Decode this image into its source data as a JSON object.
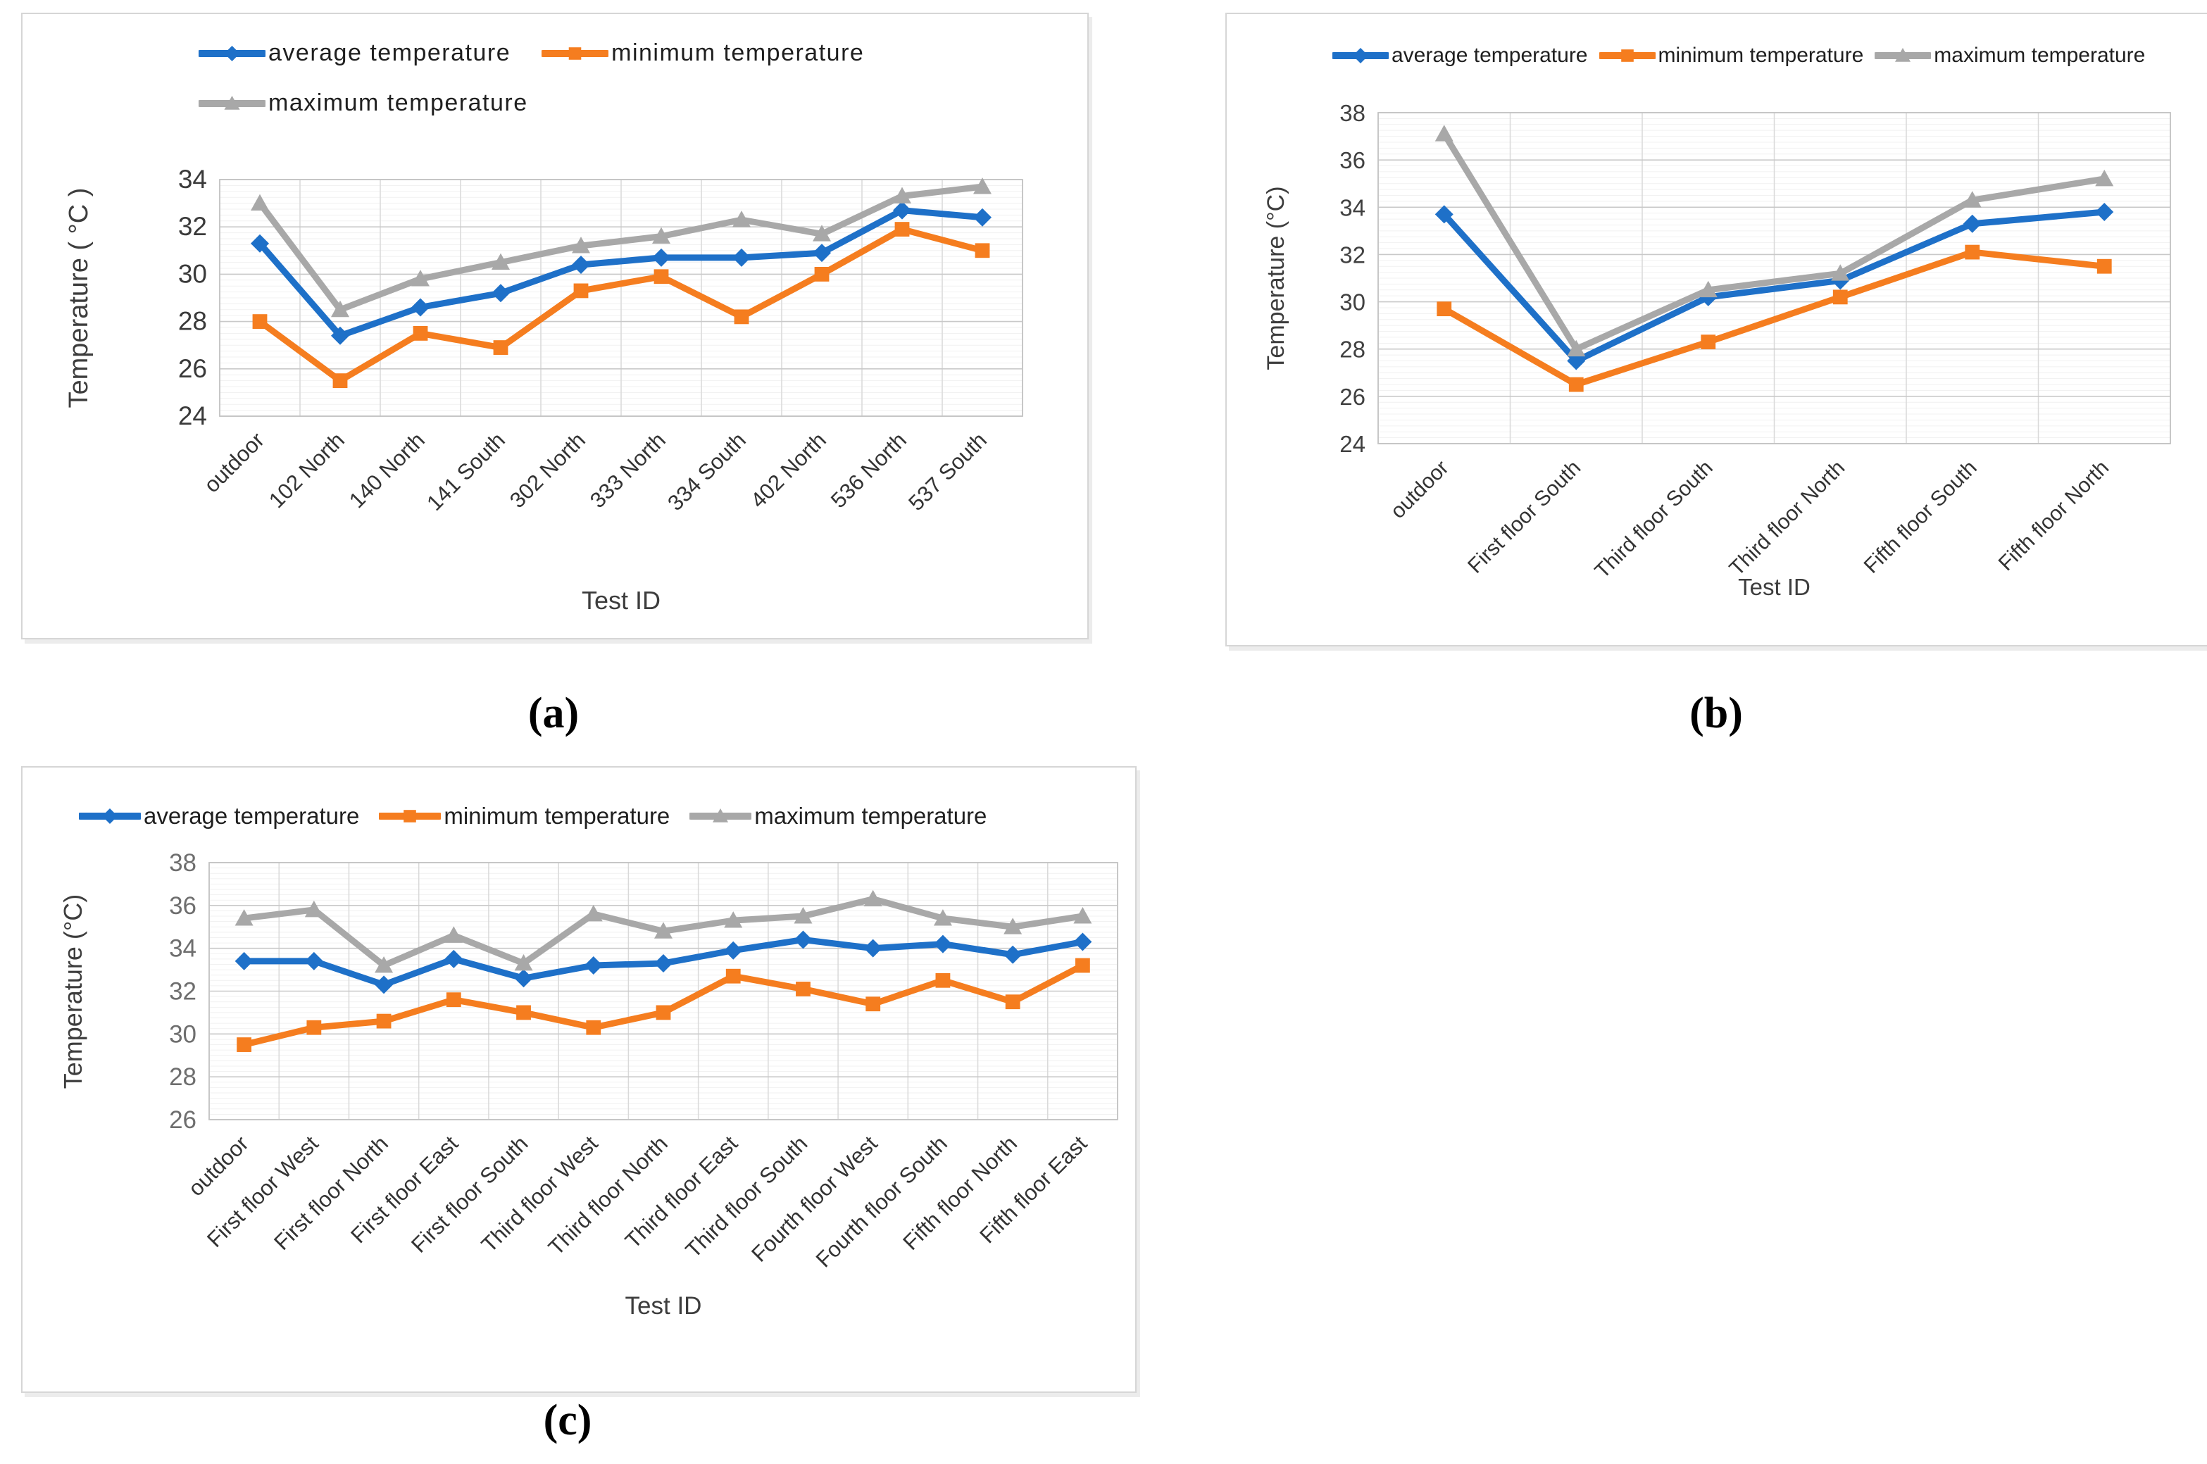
{
  "figure": {
    "background": "#ffffff",
    "panel_labels": {
      "a": "(a)",
      "b": "(b)",
      "c": "(c)"
    }
  },
  "palette": {
    "average": "#1E70C8",
    "minimum": "#F57D1F",
    "maximum": "#A8A8A8",
    "grid_major": "#c9c9c9",
    "grid_minor": "#f1f1f1",
    "grid_vertical": "#d9d9d9",
    "plot_border": "#c3c3c3"
  },
  "chart_data": [
    {
      "id": "a",
      "type": "line",
      "title": "",
      "xlabel": "Test ID",
      "ylabel": "Temperature ( °C )",
      "ylim": [
        24,
        34
      ],
      "ytick_step": 2,
      "grid": true,
      "legend_position": "top",
      "legend_rows": [
        [
          "average temperature",
          "minimum temperature"
        ],
        [
          "maximum temperature"
        ]
      ],
      "categories": [
        "outdoor",
        "102 North",
        "140 North",
        "141 South",
        "302 North",
        "333 North",
        "334 South",
        "402 North",
        "536 North",
        "537 South"
      ],
      "series": [
        {
          "name": "average temperature",
          "color": "#1E70C8",
          "marker": "diamond",
          "values": [
            31.3,
            27.4,
            28.6,
            29.2,
            30.4,
            30.7,
            30.7,
            30.9,
            32.7,
            32.4
          ]
        },
        {
          "name": "minimum temperature",
          "color": "#F57D1F",
          "marker": "square",
          "values": [
            28.0,
            25.5,
            27.5,
            26.9,
            29.3,
            29.9,
            28.2,
            30.0,
            31.9,
            31.0
          ]
        },
        {
          "name": "maximum temperature",
          "color": "#A8A8A8",
          "marker": "triangle",
          "values": [
            33.0,
            28.5,
            29.8,
            30.5,
            31.2,
            31.6,
            32.3,
            31.7,
            33.3,
            33.7
          ]
        }
      ]
    },
    {
      "id": "b",
      "type": "line",
      "title": "",
      "xlabel": "Test ID",
      "ylabel": "Temperature (°C)",
      "ylim": [
        24,
        38
      ],
      "ytick_step": 2,
      "grid": true,
      "legend_position": "top",
      "legend_rows": [
        [
          "average temperature",
          "minimum temperature",
          "maximum temperature"
        ]
      ],
      "categories": [
        "outdoor",
        "First floor South",
        "Third floor South",
        "Third floor North",
        "Fifth floor South",
        "Fifth floor North"
      ],
      "series": [
        {
          "name": "average temperature",
          "color": "#1E70C8",
          "marker": "diamond",
          "values": [
            33.7,
            27.5,
            30.2,
            30.9,
            33.3,
            33.8
          ]
        },
        {
          "name": "minimum temperature",
          "color": "#F57D1F",
          "marker": "square",
          "values": [
            29.7,
            26.5,
            28.3,
            30.2,
            32.1,
            31.5
          ]
        },
        {
          "name": "maximum temperature",
          "color": "#A8A8A8",
          "marker": "triangle",
          "values": [
            37.1,
            28.0,
            30.5,
            31.2,
            34.3,
            35.2
          ]
        }
      ]
    },
    {
      "id": "c",
      "type": "line",
      "title": "",
      "xlabel": "Test ID",
      "ylabel": "Temperature (°C)",
      "ylim": [
        26,
        38
      ],
      "ytick_step": 2,
      "grid": true,
      "legend_position": "top",
      "legend_rows": [
        [
          "average temperature",
          "minimum temperature",
          "maximum temperature"
        ]
      ],
      "categories": [
        "outdoor",
        "First floor West",
        "First floor North",
        "First floor East",
        "First floor South",
        "Third floor West",
        "Third floor North",
        "Third floor East",
        "Third floor South",
        "Fourth floor West",
        "Fourth floor South",
        "Fifth floor North",
        "Fifth floor East"
      ],
      "series": [
        {
          "name": "average temperature",
          "color": "#1E70C8",
          "marker": "diamond",
          "values": [
            33.4,
            33.4,
            32.3,
            33.5,
            32.6,
            33.2,
            33.3,
            33.9,
            34.4,
            34.0,
            34.2,
            33.7,
            34.3
          ]
        },
        {
          "name": "minimum temperature",
          "color": "#F57D1F",
          "marker": "square",
          "values": [
            29.5,
            30.3,
            30.6,
            31.6,
            31.0,
            30.3,
            31.0,
            32.7,
            32.1,
            31.4,
            32.5,
            31.5,
            33.2
          ]
        },
        {
          "name": "maximum temperature",
          "color": "#A8A8A8",
          "marker": "triangle",
          "values": [
            35.4,
            35.8,
            33.2,
            34.6,
            33.3,
            35.6,
            34.8,
            35.3,
            35.5,
            36.3,
            35.4,
            35.0,
            35.5
          ]
        }
      ]
    }
  ]
}
